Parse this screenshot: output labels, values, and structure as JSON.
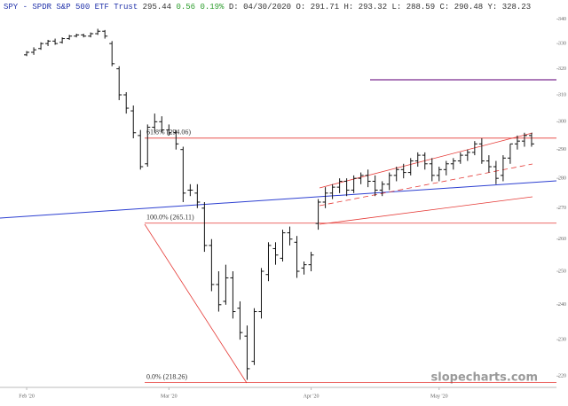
{
  "header": {
    "symbol": "SPY - SPDR S&P 500 ETF Trust",
    "last": "295.44",
    "change": "0.56 0.19%",
    "details": "D: 04/30/2020 O: 291.71 H: 293.32 L: 288.59 C: 290.48 Y: 328.23"
  },
  "chart_data": {
    "type": "ohlc",
    "log_scale": true,
    "color": "#111111",
    "xlim": [
      -3.75,
      74.5
    ],
    "xticks": [
      {
        "value": 0,
        "label": "Feb '20"
      },
      {
        "value": 20,
        "label": "Mar '20"
      },
      {
        "value": 40,
        "label": "Apr '20"
      },
      {
        "value": 58,
        "label": "May '20"
      }
    ],
    "ylim": [
      217,
      348
    ],
    "yticks": [
      220,
      230,
      240,
      250,
      260,
      270,
      280,
      290,
      300,
      310,
      320,
      330,
      340
    ],
    "series": {
      "open": [
        325.5,
        326.5,
        328,
        330,
        331,
        330.5,
        332,
        333,
        333.5,
        333,
        334,
        335,
        330,
        320,
        310,
        304,
        295,
        285,
        298,
        300,
        297,
        296,
        290,
        276,
        275,
        270,
        258,
        246,
        241,
        248,
        239,
        231,
        224,
        238,
        249,
        257,
        254,
        262,
        259,
        251,
        252,
        265,
        272,
        275,
        277,
        279,
        276,
        280,
        281,
        279,
        276,
        278,
        281,
        283,
        282,
        286,
        288,
        285,
        281,
        283,
        285,
        286,
        288,
        289,
        292,
        286,
        284,
        281,
        287,
        292,
        293,
        295
      ],
      "high": [
        327,
        328.5,
        330.5,
        331.5,
        332,
        332.5,
        333.5,
        334,
        334,
        334.5,
        336,
        335.5,
        331,
        321,
        311,
        306,
        297,
        299,
        303,
        302,
        299,
        297,
        291,
        278,
        278,
        272,
        260,
        250,
        252,
        250,
        241,
        234,
        239,
        251,
        259,
        259,
        263,
        264,
        261,
        253,
        256,
        273,
        277,
        278,
        280,
        280,
        281,
        282,
        283,
        281,
        279,
        282,
        284,
        285,
        287,
        289,
        289,
        287,
        284,
        286,
        287,
        289,
        290,
        293,
        294,
        288,
        286,
        288,
        292,
        295,
        296,
        296
      ],
      "low": [
        325,
        325.5,
        327.5,
        329,
        329.5,
        330,
        331.5,
        332.5,
        332.5,
        332.5,
        333.5,
        332,
        321,
        308,
        303,
        294,
        283,
        284,
        296,
        296,
        295,
        290,
        272,
        274,
        270,
        256,
        244,
        238,
        240,
        236,
        230,
        219,
        223,
        236,
        247,
        252,
        253,
        258,
        248,
        249,
        250,
        263,
        270,
        273,
        275,
        274,
        275,
        278,
        277,
        274,
        274,
        276,
        279,
        280,
        281,
        284,
        283,
        279,
        279,
        281,
        283,
        285,
        286,
        288,
        285,
        282,
        278,
        279,
        285,
        290,
        291,
        291
      ],
      "close": [
        326.5,
        327.5,
        330,
        331,
        330,
        332,
        333,
        333.5,
        333,
        334,
        335,
        333,
        322,
        310,
        305,
        296,
        284,
        298,
        300,
        297,
        296,
        292,
        275,
        276,
        272,
        258,
        246,
        240,
        248,
        238,
        232,
        222,
        238,
        250,
        258,
        255,
        262,
        260,
        250,
        252,
        255,
        272,
        275,
        277,
        279,
        276,
        280,
        281,
        279,
        276,
        278,
        281,
        283,
        282,
        286,
        288,
        285,
        281,
        283,
        285,
        286,
        288,
        289,
        292,
        286,
        284,
        280,
        287,
        292,
        293,
        295,
        292
      ]
    },
    "annotations": [
      {
        "label": "61.8% (294.06)",
        "value": 294.06,
        "color": "#e53935"
      },
      {
        "label": "100.0% (265.11)",
        "value": 265.11,
        "color": "#e53935"
      },
      {
        "label": "0.0% (218.26)",
        "value": 218.26,
        "color": "#e53935"
      }
    ],
    "watermark": "slopecharts.com"
  }
}
